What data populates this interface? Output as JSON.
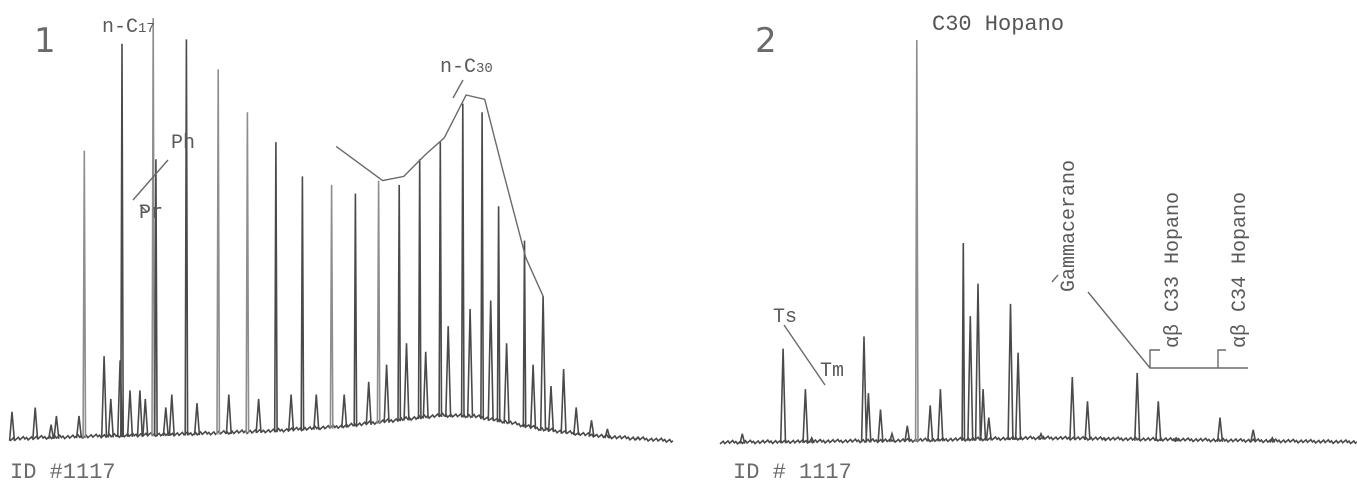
{
  "chart_data": [
    {
      "type": "line",
      "panel_label": "1",
      "footer": "ID #1117",
      "annotations": {
        "n_c17": {
          "prefix": "n-C",
          "sub": "17"
        },
        "ph": "Ph",
        "pr": "Pr",
        "n_c30": {
          "prefix": "n-C",
          "sub": "30"
        }
      },
      "baseline_hump": [
        [
          0,
          1.2
        ],
        [
          5,
          1.6
        ],
        [
          10,
          1.8
        ],
        [
          20,
          2.2
        ],
        [
          30,
          2.6
        ],
        [
          40,
          3.2
        ],
        [
          50,
          4.2
        ],
        [
          60,
          6.0
        ],
        [
          65,
          6.8
        ],
        [
          70,
          6.6
        ],
        [
          75,
          5.2
        ],
        [
          80,
          3.6
        ],
        [
          85,
          2.6
        ],
        [
          90,
          1.8
        ],
        [
          100,
          0.8
        ]
      ],
      "peaks": [
        {
          "x": 0.3,
          "y": 8
        },
        {
          "x": 3.8,
          "y": 9
        },
        {
          "x": 6.2,
          "y": 5
        },
        {
          "x": 7.0,
          "y": 7
        },
        {
          "x": 10.4,
          "y": 7
        },
        {
          "x": 11.2,
          "y": 69,
          "grey": true
        },
        {
          "x": 14.2,
          "y": 21
        },
        {
          "x": 15.2,
          "y": 11
        },
        {
          "x": 16.6,
          "y": 20
        },
        {
          "x": 16.9,
          "y": 94
        },
        {
          "x": 18.1,
          "y": 13
        },
        {
          "x": 19.6,
          "y": 13
        },
        {
          "x": 20.4,
          "y": 11
        },
        {
          "x": 21.6,
          "y": 100,
          "grey": true
        },
        {
          "x": 22.0,
          "y": 67
        },
        {
          "x": 23.5,
          "y": 9
        },
        {
          "x": 24.4,
          "y": 12
        },
        {
          "x": 26.6,
          "y": 95
        },
        {
          "x": 28.2,
          "y": 10
        },
        {
          "x": 31.4,
          "y": 88,
          "grey": true
        },
        {
          "x": 33.0,
          "y": 12
        },
        {
          "x": 35.8,
          "y": 78,
          "grey": true
        },
        {
          "x": 37.5,
          "y": 11
        },
        {
          "x": 40.1,
          "y": 71
        },
        {
          "x": 42.4,
          "y": 12
        },
        {
          "x": 44.1,
          "y": 63
        },
        {
          "x": 46.2,
          "y": 12
        },
        {
          "x": 48.5,
          "y": 61,
          "grey": true
        },
        {
          "x": 50.4,
          "y": 12
        },
        {
          "x": 52.1,
          "y": 59
        },
        {
          "x": 54.1,
          "y": 15
        },
        {
          "x": 55.6,
          "y": 62,
          "grey": true
        },
        {
          "x": 56.8,
          "y": 19
        },
        {
          "x": 58.7,
          "y": 61
        },
        {
          "x": 59.8,
          "y": 24
        },
        {
          "x": 61.8,
          "y": 67
        },
        {
          "x": 62.7,
          "y": 22
        },
        {
          "x": 64.9,
          "y": 71
        },
        {
          "x": 66.1,
          "y": 28
        },
        {
          "x": 68.3,
          "y": 80
        },
        {
          "x": 69.4,
          "y": 32
        },
        {
          "x": 71.2,
          "y": 78
        },
        {
          "x": 72.5,
          "y": 34
        },
        {
          "x": 73.7,
          "y": 56
        },
        {
          "x": 74.9,
          "y": 24
        },
        {
          "x": 77.6,
          "y": 48
        },
        {
          "x": 78.9,
          "y": 19
        },
        {
          "x": 80.4,
          "y": 35
        },
        {
          "x": 81.6,
          "y": 14
        },
        {
          "x": 83.5,
          "y": 18
        },
        {
          "x": 85.4,
          "y": 9
        },
        {
          "x": 87.7,
          "y": 6
        },
        {
          "x": 90.1,
          "y": 4
        },
        {
          "x": 94.7,
          "y": 2
        }
      ],
      "envelope": [
        [
          49.2,
          70
        ],
        [
          56.2,
          62
        ],
        [
          59.4,
          63
        ],
        [
          62.6,
          68
        ],
        [
          65.5,
          72
        ],
        [
          68.8,
          82
        ],
        [
          71.6,
          81
        ],
        [
          74.4,
          64
        ],
        [
          77.8,
          44
        ],
        [
          80.4,
          35
        ]
      ]
    },
    {
      "type": "line",
      "panel_label": "2",
      "footer": "ID # 1117",
      "annotations": {
        "c30_hopano": "C30 Hopano",
        "gammacerano": "Gammacerano",
        "ts": "Ts",
        "tm": "Tm",
        "c33": "αβ C33 Hopano",
        "c34": "αβ C34 Hopano"
      },
      "baseline_hump": [
        [
          0,
          0.5
        ],
        [
          30,
          1.0
        ],
        [
          50,
          1.6
        ],
        [
          70,
          1.2
        ],
        [
          100,
          0.6
        ]
      ],
      "peaks": [
        {
          "x": 3.5,
          "y": 3
        },
        {
          "x": 9.9,
          "y": 24
        },
        {
          "x": 13.4,
          "y": 14
        },
        {
          "x": 14.4,
          "y": 2
        },
        {
          "x": 22.6,
          "y": 27
        },
        {
          "x": 23.3,
          "y": 13
        },
        {
          "x": 25.2,
          "y": 9
        },
        {
          "x": 27.0,
          "y": 3
        },
        {
          "x": 29.4,
          "y": 5
        },
        {
          "x": 30.9,
          "y": 100,
          "grey": true
        },
        {
          "x": 33.0,
          "y": 10
        },
        {
          "x": 34.6,
          "y": 14
        },
        {
          "x": 38.2,
          "y": 50
        },
        {
          "x": 39.3,
          "y": 32
        },
        {
          "x": 40.5,
          "y": 40
        },
        {
          "x": 41.3,
          "y": 14
        },
        {
          "x": 42.2,
          "y": 7
        },
        {
          "x": 45.6,
          "y": 35
        },
        {
          "x": 46.8,
          "y": 23
        },
        {
          "x": 50.4,
          "y": 3
        },
        {
          "x": 55.3,
          "y": 17
        },
        {
          "x": 57.7,
          "y": 11
        },
        {
          "x": 60.3,
          "y": 2
        },
        {
          "x": 65.5,
          "y": 18
        },
        {
          "x": 68.8,
          "y": 11
        },
        {
          "x": 71.6,
          "y": 2
        },
        {
          "x": 78.5,
          "y": 7
        },
        {
          "x": 83.7,
          "y": 4
        },
        {
          "x": 86.7,
          "y": 2
        }
      ]
    }
  ]
}
